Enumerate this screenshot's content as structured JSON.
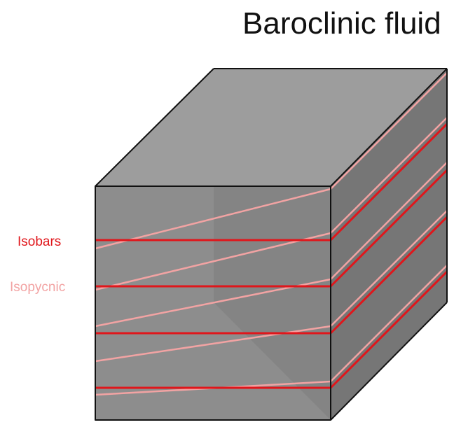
{
  "figure": {
    "title": "Baroclinic fluid"
  },
  "legend": {
    "isobars": {
      "label": "Isobars",
      "color": "#e0161b"
    },
    "isopycnic": {
      "label": "Isopycnic",
      "color": "#f2a3a3"
    }
  },
  "cube": {
    "front_face_color": "#838383",
    "top_face_color": "#9d9d9d",
    "side_face_color": "#767676",
    "back_panel_color": "#8c8c8c",
    "edge_color": "#111111"
  },
  "isobar_count": 4,
  "isopycnic_count": 5
}
